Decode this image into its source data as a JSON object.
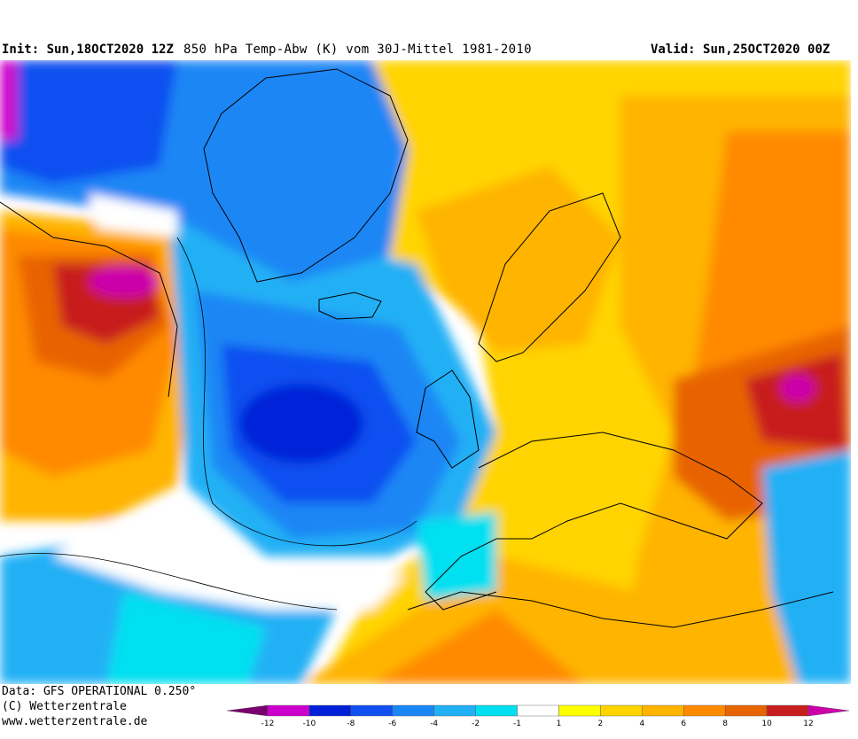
{
  "header": {
    "init_label": "Init:",
    "init_value": "Sun,18OCT2020 12Z",
    "title": "850 hPa Temp-Abw (K) vom 30J-Mittel 1981-2010",
    "valid_label": "Valid:",
    "valid_value": "Sun,25OCT2020 00Z"
  },
  "footer": {
    "data_line": "Data: GFS OPERATIONAL 0.250°",
    "copyright": "(C) Wetterzentrale",
    "url": "www.wetterzentrale.de"
  },
  "legend": {
    "ticks": [
      "-12",
      "-10",
      "-8",
      "-6",
      "-4",
      "-2",
      "-1",
      "1",
      "2",
      "4",
      "6",
      "8",
      "10",
      "12"
    ],
    "colors": [
      "#7a0070",
      "#cc00cc",
      "#0020d8",
      "#1050f0",
      "#1a86f5",
      "#22b0f5",
      "#00e0f0",
      "#ffffff",
      "#ffff00",
      "#ffd400",
      "#ffb400",
      "#ff8a00",
      "#e86400",
      "#c81e1e",
      "#cc00aa"
    ]
  },
  "map": {
    "field": "850 hPa temperature anomaly (K)",
    "region": "North Atlantic / Europe",
    "colors": {
      "deep_negative": "#0020d8",
      "strong_negative": "#1050f0",
      "moderate_negative": "#1a86f5",
      "weak_negative": "#22b0f5",
      "slight_negative": "#00e0f0",
      "neutral": "#ffffff",
      "slight_positive": "#ffff00",
      "weak_positive": "#ffd400",
      "moderate_positive": "#ffb400",
      "strong_positive": "#ff8a00",
      "very_strong_positive": "#e86400",
      "extreme_positive": "#c81e1e",
      "peak_positive": "#cc00aa",
      "coastline": "#000000"
    }
  }
}
